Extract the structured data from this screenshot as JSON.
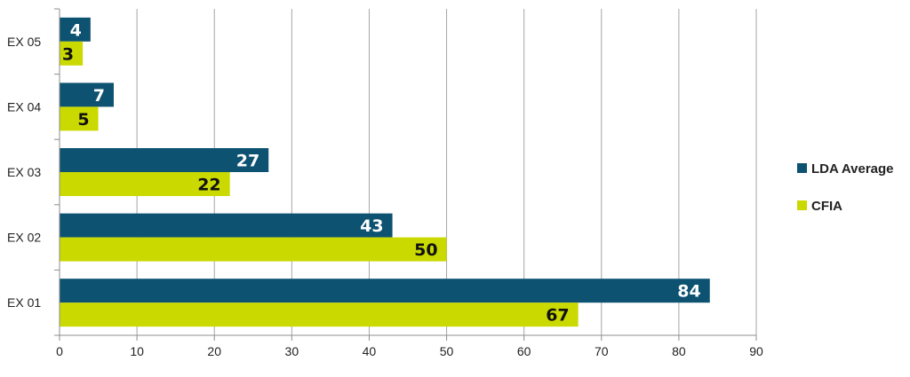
{
  "chart_data": {
    "type": "bar",
    "orientation": "horizontal",
    "categories": [
      "EX 01",
      "EX 02",
      "EX 03",
      "EX 04",
      "EX 05"
    ],
    "series": [
      {
        "name": "LDA Average",
        "color": "#0d5270",
        "label_color": "#ffffff",
        "values": [
          84,
          43,
          27,
          7,
          4
        ]
      },
      {
        "name": "CFIA",
        "color": "#cad900",
        "label_color": "#111111",
        "values": [
          67,
          50,
          22,
          5,
          3
        ]
      }
    ],
    "xlim": [
      0,
      90
    ],
    "xticks": [
      0,
      10,
      20,
      30,
      40,
      50,
      60,
      70,
      80,
      90
    ],
    "title": "",
    "xlabel": "",
    "ylabel": "",
    "grid": "vertical",
    "legend_position": "right"
  }
}
